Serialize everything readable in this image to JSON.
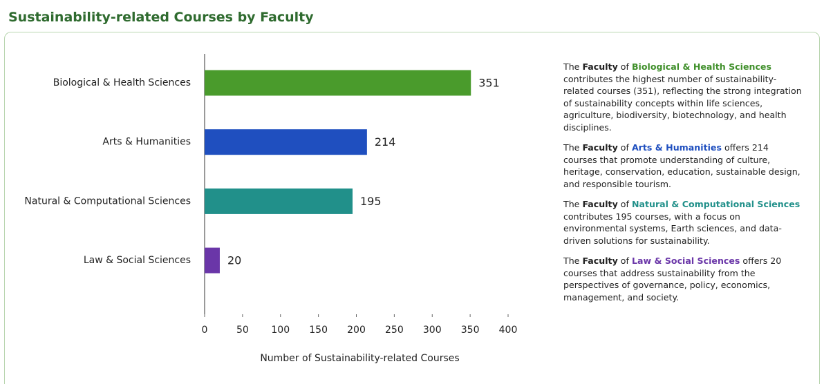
{
  "chart_data": {
    "type": "barh",
    "title": "Sustainability-related Courses by Faculty",
    "categories": [
      "Biological & Health Sciences",
      "Arts & Humanities",
      "Natural & Computational Sciences",
      "Law & Social Sciences"
    ],
    "values": [
      351,
      214,
      195,
      20
    ],
    "colors": [
      "#4a9b2c",
      "#1f4fbf",
      "#21908a",
      "#6a36a8"
    ],
    "xlabel": "Number of Sustainability-related Courses",
    "xlim": [
      0,
      400
    ],
    "xticks": [
      0,
      50,
      100,
      150,
      200,
      250,
      300,
      350,
      400
    ],
    "grid": false
  },
  "text_panel": {
    "paragraphs": [
      [
        {
          "text": "The "
        },
        {
          "text": "Faculty",
          "bold": true
        },
        {
          "text": " of "
        },
        {
          "text": "Biological & Health Sciences",
          "bold": true,
          "color": "#3f8f2a"
        },
        {
          "text": " contributes the highest number of sustainability-related courses (351), reflecting the strong integration of sustainability concepts within life sciences, agriculture, biodiversity, biotechnology, and health disciplines."
        }
      ],
      [
        {
          "text": "The "
        },
        {
          "text": "Faculty",
          "bold": true
        },
        {
          "text": " of "
        },
        {
          "text": "Arts & Humanities",
          "bold": true,
          "color": "#1f4fbf"
        },
        {
          "text": " offers 214 courses that promote understanding of culture, heritage, conservation, education, sustainable design, and responsible tourism."
        }
      ],
      [
        {
          "text": "The "
        },
        {
          "text": "Faculty",
          "bold": true
        },
        {
          "text": " of "
        },
        {
          "text": "Natural & Computational Sciences",
          "bold": true,
          "color": "#21908a"
        },
        {
          "text": " contributes 195 courses, with a focus on environmental systems, Earth sciences, and data-driven solutions for sustainability."
        }
      ],
      [
        {
          "text": "The "
        },
        {
          "text": "Faculty",
          "bold": true
        },
        {
          "text": " of "
        },
        {
          "text": "Law & Social Sciences",
          "bold": true,
          "color": "#6a36a8"
        },
        {
          "text": " offers 20 courses that address sustainability from the perspectives of governance, policy, economics, management, and society."
        }
      ]
    ]
  }
}
